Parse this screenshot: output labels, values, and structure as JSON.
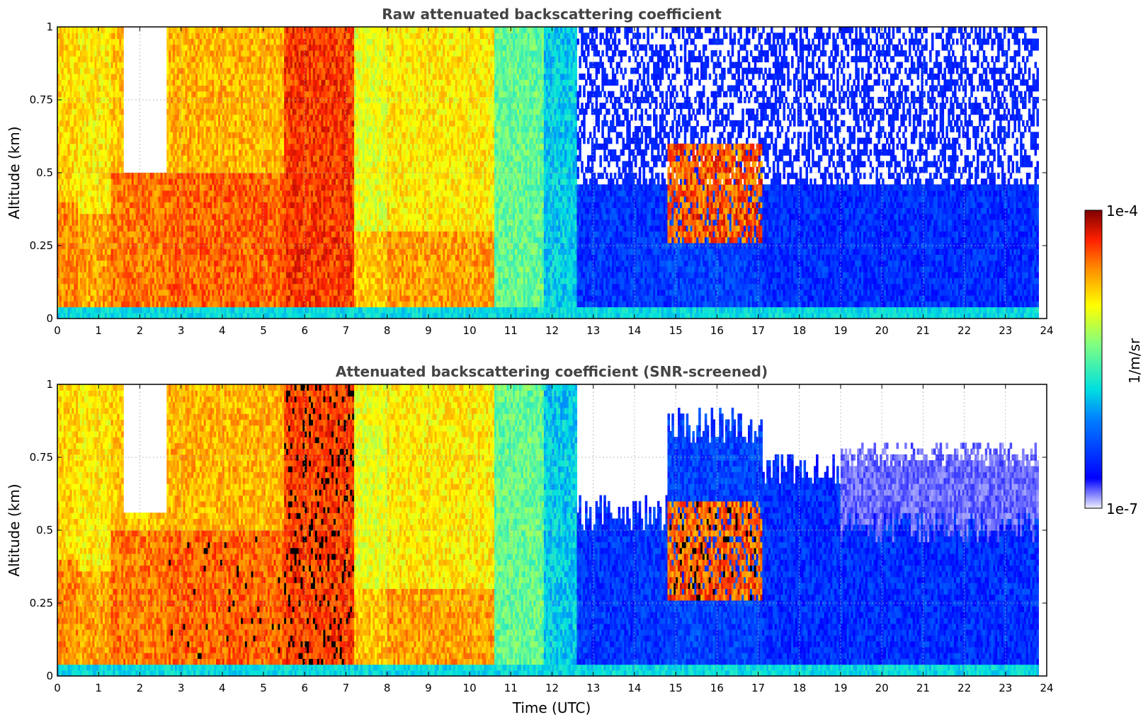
{
  "chart_data": [
    {
      "type": "heatmap",
      "title": "Raw attenuated backscattering coefficient",
      "xlabel": "",
      "ylabel": "Altitude (km)",
      "xlim": [
        0,
        24
      ],
      "ylim": [
        0,
        1
      ],
      "x_ticks": [
        "0",
        "1",
        "2",
        "3",
        "4",
        "5",
        "6",
        "7",
        "8",
        "9",
        "10",
        "11",
        "12",
        "13",
        "14",
        "15",
        "16",
        "17",
        "18",
        "19",
        "20",
        "21",
        "22",
        "23",
        "24"
      ],
      "y_ticks": [
        "0",
        "0.25",
        "0.5",
        "0.75",
        "1"
      ],
      "grid": true,
      "screened": false,
      "regions": [
        {
          "time": [
            0.0,
            0.5
          ],
          "level": 0.72,
          "boundary_layer_km": 0.4
        },
        {
          "time": [
            0.5,
            1.3
          ],
          "level": 0.7,
          "boundary_layer_km": 0.35
        },
        {
          "time": [
            1.3,
            2.7
          ],
          "level": 0.74,
          "boundary_layer_km": 0.5,
          "clear_above_km": 0.5
        },
        {
          "time": [
            2.7,
            5.5
          ],
          "level": 0.76,
          "boundary_layer_km": 0.5
        },
        {
          "time": [
            5.5,
            7.2
          ],
          "level": 0.8,
          "boundary_layer_km": 1.0
        },
        {
          "time": [
            7.2,
            8.0
          ],
          "level": 0.66,
          "boundary_layer_km": 0.3
        },
        {
          "time": [
            8.0,
            10.6
          ],
          "level": 0.7,
          "boundary_layer_km": 0.3
        },
        {
          "time": [
            10.6,
            11.8
          ],
          "level": 0.52,
          "boundary_layer_km": 0.0
        },
        {
          "time": [
            11.8,
            12.6
          ],
          "level": 0.38,
          "boundary_layer_km": 0.0
        },
        {
          "time": [
            12.6,
            14.8
          ],
          "level": 0.18,
          "boundary_layer_km": 0.0
        },
        {
          "time": [
            14.8,
            17.1
          ],
          "level": 0.2,
          "boundary_layer_km": 0.0,
          "cloud_km": [
            0.25,
            0.6
          ],
          "cloud_level": 0.85
        },
        {
          "time": [
            17.1,
            23.8
          ],
          "level": 0.17,
          "boundary_layer_km": 0.0
        }
      ]
    },
    {
      "type": "heatmap",
      "title": "Attenuated backscattering coefficient (SNR-screened)",
      "xlabel": "Time (UTC)",
      "ylabel": "Altitude (km)",
      "xlim": [
        0,
        24
      ],
      "ylim": [
        0,
        1
      ],
      "x_ticks": [
        "0",
        "1",
        "2",
        "3",
        "4",
        "5",
        "6",
        "7",
        "8",
        "9",
        "10",
        "11",
        "12",
        "13",
        "14",
        "15",
        "16",
        "17",
        "18",
        "19",
        "20",
        "21",
        "22",
        "23",
        "24"
      ],
      "y_ticks": [
        "0",
        "0.25",
        "0.5",
        "0.75",
        "1"
      ],
      "grid": true,
      "screened": true,
      "regions": [
        {
          "time": [
            0.0,
            0.5
          ],
          "level": 0.72,
          "boundary_layer_km": 0.4
        },
        {
          "time": [
            0.5,
            1.3
          ],
          "level": 0.7,
          "boundary_layer_km": 0.35
        },
        {
          "time": [
            1.3,
            2.7
          ],
          "level": 0.74,
          "boundary_layer_km": 0.5,
          "clear_above_km": 0.55
        },
        {
          "time": [
            2.7,
            5.5
          ],
          "level": 0.76,
          "boundary_layer_km": 0.5
        },
        {
          "time": [
            5.5,
            7.2
          ],
          "level": 0.8,
          "boundary_layer_km": 1.0
        },
        {
          "time": [
            7.2,
            8.0
          ],
          "level": 0.66,
          "boundary_layer_km": 0.3
        },
        {
          "time": [
            8.0,
            10.6
          ],
          "level": 0.7,
          "boundary_layer_km": 0.3
        },
        {
          "time": [
            10.6,
            11.8
          ],
          "level": 0.52,
          "boundary_layer_km": 0.0
        },
        {
          "time": [
            11.8,
            12.6
          ],
          "level": 0.38,
          "boundary_layer_km": 0.0
        },
        {
          "time": [
            12.6,
            14.8
          ],
          "level": 0.18,
          "boundary_layer_km": 0.0,
          "top_km": 0.55
        },
        {
          "time": [
            14.8,
            17.1
          ],
          "level": 0.2,
          "boundary_layer_km": 0.0,
          "top_km": 0.85,
          "cloud_km": [
            0.25,
            0.6
          ],
          "cloud_level": 0.85
        },
        {
          "time": [
            17.1,
            19.0
          ],
          "level": 0.17,
          "boundary_layer_km": 0.0,
          "top_km": 0.7
        },
        {
          "time": [
            19.0,
            23.8
          ],
          "level": 0.17,
          "boundary_layer_km": 0.0,
          "top_km": 0.5,
          "faint_top_km": 0.75
        }
      ]
    }
  ],
  "colorbar": {
    "label": "1/m/sr",
    "max_label": "1e-4",
    "min_label": "1e-7",
    "colormap": "jet",
    "low_color": "#f0f0ff",
    "high_color": "#7f0000"
  }
}
